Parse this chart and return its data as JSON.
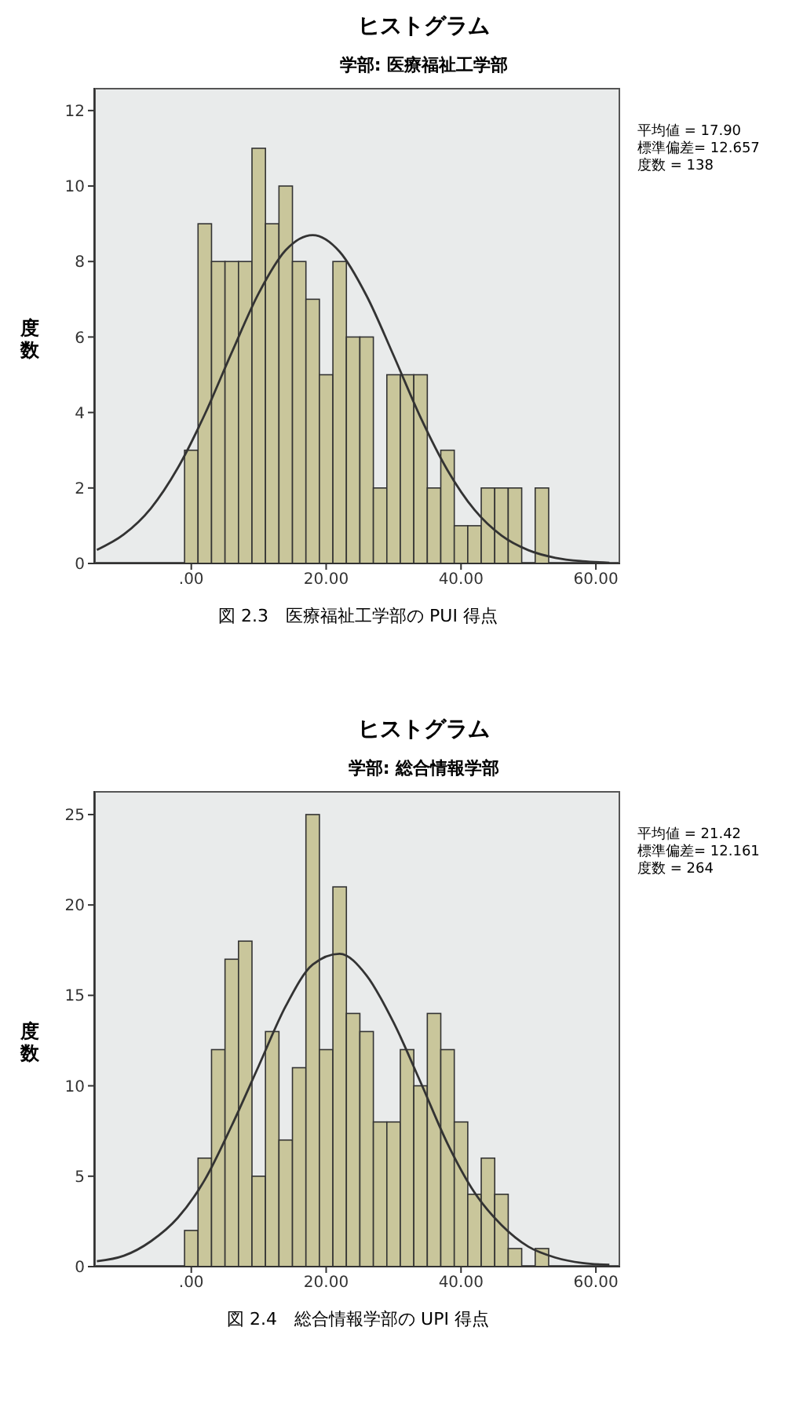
{
  "chart_data": [
    {
      "type": "histogram",
      "title": "ヒストグラム",
      "subtitle": "学部: 医療福祉工学部",
      "ylabel": "度数",
      "bins": [
        -1,
        1,
        3,
        5,
        7,
        9,
        11,
        13,
        15,
        17,
        19,
        21,
        23,
        25,
        27,
        29,
        31,
        33,
        35,
        37,
        39,
        41,
        43,
        45,
        47,
        49,
        51,
        53
      ],
      "values": [
        3,
        9,
        8,
        8,
        8,
        11,
        9,
        10,
        8,
        7,
        5,
        8,
        6,
        6,
        2,
        5,
        5,
        5,
        2,
        3,
        1,
        1,
        2,
        2,
        2,
        0,
        2
      ],
      "color": "#c9c69b",
      "series": [
        {
          "type": "line",
          "color": "#333333",
          "x": [
            -14,
            -10,
            -6,
            -2,
            2,
            6,
            10,
            14,
            18,
            22,
            26,
            30,
            34,
            38,
            42,
            46,
            50,
            54,
            58,
            62
          ],
          "values": [
            0.36,
            0.77,
            1.46,
            2.53,
            3.95,
            5.59,
            7.16,
            8.3,
            8.7,
            8.26,
            7.09,
            5.51,
            3.87,
            2.47,
            1.42,
            0.74,
            0.35,
            0.15,
            0.06,
            0.02
          ]
        }
      ],
      "xlim": [
        -14.4,
        63.6
      ],
      "xticks": [
        {
          "value": 0,
          "label": ".00"
        },
        {
          "value": 20,
          "label": "20.00"
        },
        {
          "value": 40,
          "label": "40.00"
        },
        {
          "value": 60,
          "label": "60.00"
        }
      ],
      "ylim": [
        0,
        12.6
      ],
      "yticks": [
        0,
        2,
        4,
        6,
        8,
        10,
        12
      ],
      "annotations": [
        "平均値 = 17.90",
        "標準偏差= 12.657",
        "度数 = 138",
        "図 2.3　医療福祉工学部の PUI 得点"
      ]
    },
    {
      "type": "histogram",
      "title": "ヒストグラム",
      "subtitle": "学部: 総合情報学部",
      "ylabel": "度数",
      "bins": [
        -1,
        1,
        3,
        5,
        7,
        9,
        11,
        13,
        15,
        17,
        19,
        21,
        23,
        25,
        27,
        29,
        31,
        33,
        35,
        37,
        39,
        41,
        43,
        45,
        47,
        49,
        51,
        53
      ],
      "values": [
        2,
        6,
        12,
        17,
        18,
        5,
        13,
        7,
        11,
        25,
        12,
        21,
        14,
        13,
        8,
        8,
        12,
        10,
        14,
        12,
        8,
        4,
        6,
        4,
        1,
        0,
        1
      ],
      "color": "#c9c69b",
      "series": [
        {
          "type": "line",
          "color": "#333333",
          "x": [
            -14,
            -10,
            -6,
            -2,
            2,
            6,
            10,
            14,
            18,
            22,
            26,
            30,
            34,
            38,
            42,
            46,
            50,
            54,
            58,
            62
          ],
          "values": [
            0.3,
            0.6,
            1.4,
            2.7,
            4.8,
            7.8,
            11.1,
            14.4,
            16.7,
            17.3,
            16.1,
            13.5,
            10.2,
            6.8,
            4.1,
            2.3,
            1.1,
            0.5,
            0.2,
            0.1
          ]
        }
      ],
      "xlim": [
        -14.4,
        63.6
      ],
      "xticks": [
        {
          "value": 0,
          "label": ".00"
        },
        {
          "value": 20,
          "label": "20.00"
        },
        {
          "value": 40,
          "label": "40.00"
        },
        {
          "value": 60,
          "label": "60.00"
        }
      ],
      "ylim": [
        0,
        26.3
      ],
      "yticks": [
        0,
        5,
        10,
        15,
        20,
        25
      ],
      "annotations": [
        "平均値 = 21.42",
        "標準偏差= 12.161",
        "度数 = 264",
        "図 2.4　総合情報学部の UPI 得点"
      ]
    }
  ]
}
